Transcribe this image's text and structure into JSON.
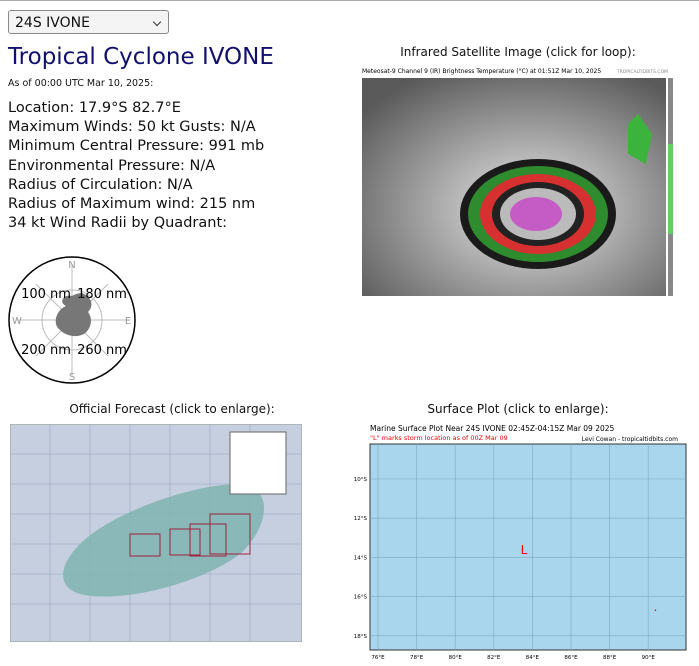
{
  "storm_select": "24S IVONE",
  "title": "Tropical Cyclone IVONE",
  "timestamp": "As of 00:00 UTC Mar 10, 2025:",
  "info_lines": [
    "Location: 17.9°S 82.7°E",
    "Maximum Winds: 50 kt  Gusts: N/A",
    "Minimum Central Pressure: 991 mb",
    "Environmental Pressure: N/A",
    "Radius of Circulation: N/A",
    "Radius of Maximum wind: 215 nm",
    "34 kt Wind Radii by Quadrant:"
  ],
  "wind_radii": {
    "nw": "100 nm",
    "ne": "180 nm",
    "sw": "200 nm",
    "se": "260 nm",
    "compass": {
      "n": "N",
      "e": "E",
      "s": "S",
      "w": "W"
    }
  },
  "ir": {
    "caption": "Infrared Satellite Image (click for loop):",
    "image_title": "Meteosat-9 Channel 9 (IR) Brightness Temperature (°C) at 01:51Z Mar 10, 2025",
    "credit": "TROPICALTIDBITS.COM"
  },
  "forecast": {
    "caption": "Official Forecast (click to enlarge):"
  },
  "surface": {
    "caption": "Surface Plot (click to enlarge):",
    "image_title": "Marine Surface Plot Near 24S IVONE 02:45Z-04:15Z Mar 09 2025",
    "subtitle": "\"L\" marks storm location as of 00Z Mar 09",
    "credit": "Levi Cowan - tropicaltidbits.com",
    "storm_marker": "L",
    "lat_labels": [
      "10°S",
      "12°S",
      "14°S",
      "16°S",
      "18°S"
    ],
    "lon_labels": [
      "76°E",
      "78°E",
      "80°E",
      "82°E",
      "84°E",
      "86°E",
      "88°E",
      "90°E"
    ]
  }
}
